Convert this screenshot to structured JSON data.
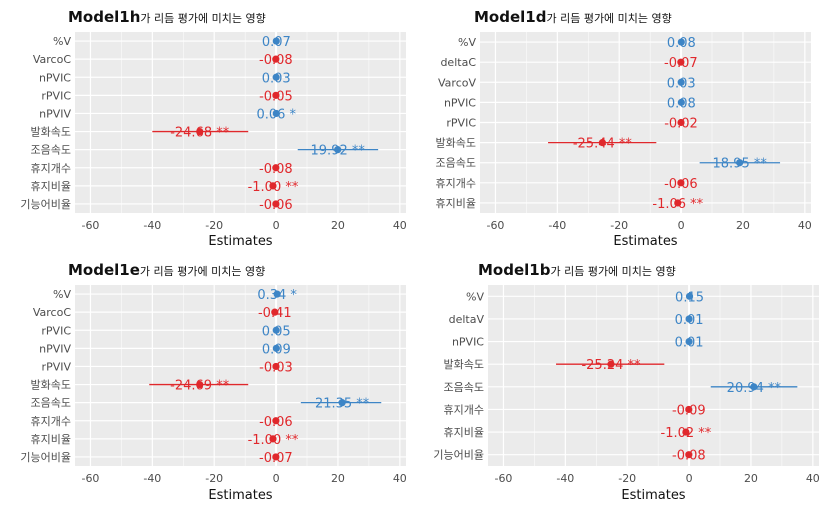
{
  "colors": {
    "negative": "#e0282c",
    "positive": "#3d85c6",
    "panel_bg": "#ebebeb",
    "grid": "#ffffff"
  },
  "chart_data": [
    {
      "type": "coefficient",
      "title_model": "Model1h",
      "title_suffix": "가 리듬 평가에 미치는 영향",
      "xlabel": "Estimates",
      "xlim": [
        -65,
        42
      ],
      "xticks": [
        -60,
        -40,
        -20,
        0,
        20,
        40
      ],
      "grid": true,
      "categories": [
        "%V",
        "VarcoC",
        "nPVIC",
        "rPVIC",
        "nPVIV",
        "발화속도",
        "조음속도",
        "휴지개수",
        "휴지비율",
        "기능어비율"
      ],
      "estimates": [
        0.07,
        -0.08,
        0.03,
        -0.05,
        0.06,
        -24.68,
        19.92,
        -0.08,
        -1.0,
        -0.06
      ],
      "ci_low": [
        -0.4,
        -0.4,
        -0.4,
        -0.4,
        -0.4,
        -40,
        7,
        -0.4,
        -1.3,
        -0.4
      ],
      "ci_high": [
        0.4,
        0.4,
        0.4,
        0.4,
        0.4,
        -9,
        33,
        0.4,
        -0.7,
        0.4
      ],
      "labels": [
        "0.07",
        "-0.08",
        "0.03",
        "-0.05",
        "0.06 *",
        "-24.68 **",
        "19.92 **",
        "-0.08",
        "-1.00 **",
        "-0.06"
      ]
    },
    {
      "type": "coefficient",
      "title_model": "Model1d",
      "title_suffix": "가 리듬 평가에 미치는 영향",
      "xlabel": "Estimates",
      "xlim": [
        -65,
        42
      ],
      "xticks": [
        -60,
        -40,
        -20,
        0,
        20,
        40
      ],
      "grid": true,
      "categories": [
        "%V",
        "deltaC",
        "VarcoV",
        "nPVIC",
        "rPVIC",
        "발화속도",
        "조음속도",
        "휴지개수",
        "휴지비율"
      ],
      "estimates": [
        0.08,
        -0.07,
        0.03,
        0.08,
        -0.02,
        -25.44,
        18.95,
        -0.06,
        -1.06
      ],
      "ci_low": [
        -0.4,
        -0.4,
        -0.4,
        -0.4,
        -0.4,
        -43,
        6,
        -0.4,
        -1.4
      ],
      "ci_high": [
        0.4,
        0.4,
        0.4,
        0.4,
        0.4,
        -8,
        32,
        0.4,
        -0.7
      ],
      "labels": [
        "0.08",
        "-0.07",
        "0.03",
        "0.08",
        "-0.02",
        "-25.44 **",
        "18.95 **",
        "-0.06",
        "-1.06 **"
      ]
    },
    {
      "type": "coefficient",
      "title_model": "Model1e",
      "title_suffix": "가 리듬 평가에 미치는 영향",
      "xlabel": "Estimates",
      "xlim": [
        -65,
        42
      ],
      "xticks": [
        -60,
        -40,
        -20,
        0,
        20,
        40
      ],
      "grid": true,
      "categories": [
        "%V",
        "VarcoC",
        "rPVIC",
        "nPVIV",
        "rPVIV",
        "발화속도",
        "조음속도",
        "휴지개수",
        "휴지비율",
        "기능어비율"
      ],
      "estimates": [
        0.34,
        -0.41,
        0.05,
        0.09,
        -0.03,
        -24.69,
        21.35,
        -0.06,
        -1.0,
        -0.07
      ],
      "ci_low": [
        -0.4,
        -0.8,
        -0.4,
        -0.4,
        -0.4,
        -41,
        8,
        -0.4,
        -1.3,
        -0.4
      ],
      "ci_high": [
        0.8,
        0.2,
        0.4,
        0.4,
        0.4,
        -9,
        34,
        0.4,
        -0.7,
        0.4
      ],
      "labels": [
        "0.34 *",
        "-0.41",
        "0.05",
        "0.09",
        "-0.03",
        "-24.69 **",
        "21.35 **",
        "-0.06",
        "-1.00 **",
        "-0.07"
      ]
    },
    {
      "type": "coefficient",
      "title_model": "Model1b",
      "title_suffix": "가 리듬 평가에 미치는 영향",
      "xlabel": "Estimates",
      "xlim": [
        -65,
        42
      ],
      "xticks": [
        -60,
        -40,
        -20,
        0,
        20,
        40
      ],
      "grid": true,
      "categories": [
        "%V",
        "deltaV",
        "nPVIC",
        "발화속도",
        "조음속도",
        "휴지개수",
        "휴지비율",
        "기능어비율"
      ],
      "estimates": [
        0.15,
        0.01,
        0.01,
        -25.24,
        20.94,
        -0.09,
        -1.02,
        -0.08
      ],
      "ci_low": [
        -0.4,
        -0.4,
        -0.4,
        -43,
        7,
        -0.4,
        -1.4,
        -0.4
      ],
      "ci_high": [
        0.4,
        0.4,
        0.4,
        -8,
        35,
        0.4,
        -0.7,
        0.4
      ],
      "labels": [
        "0.15",
        "0.01",
        "0.01",
        "-25.24 **",
        "20.94 **",
        "-0.09",
        "-1.02 **",
        "-0.08"
      ]
    }
  ]
}
